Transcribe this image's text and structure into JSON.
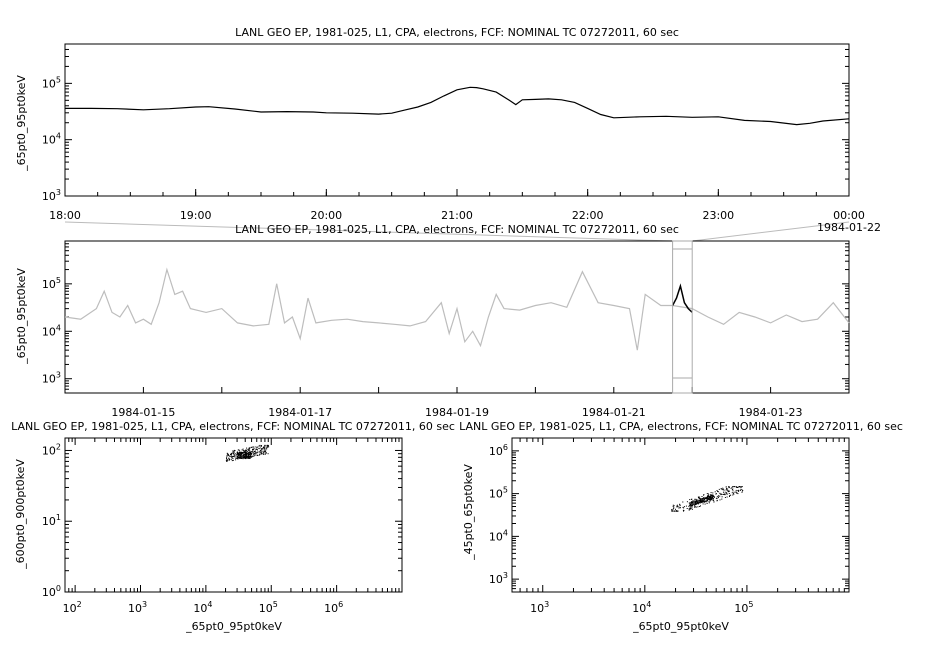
{
  "chart_data": [
    {
      "type": "line",
      "title": "LANL GEO EP, 1981-025, L1, CPA, electrons, FCF: NOMINAL TC 07272011, 60 sec",
      "ylabel": "_65pt0_95pt0keV",
      "yscale": "log",
      "ylim": [
        1000,
        500000
      ],
      "y_ticks": [
        {
          "b": "10",
          "e": "3"
        },
        {
          "b": "10",
          "e": "4"
        },
        {
          "b": "10",
          "e": "5"
        }
      ],
      "x_ticks": [
        "18:00",
        "19:00",
        "20:00",
        "21:00",
        "22:00",
        "23:00",
        "00:00"
      ],
      "x_extra_label": "1984-01-22",
      "xlim": [
        18.0,
        24.0
      ],
      "series": [
        {
          "x": [
            18.0,
            18.2,
            18.4,
            18.6,
            18.8,
            19.0,
            19.1,
            19.3,
            19.5,
            19.7,
            19.9,
            20.0,
            20.2,
            20.4,
            20.5,
            20.6,
            20.7,
            20.8,
            20.9,
            21.0,
            21.1,
            21.15,
            21.2,
            21.3,
            21.4,
            21.45,
            21.5,
            21.6,
            21.7,
            21.8,
            21.9,
            22.0,
            22.1,
            22.2,
            22.3,
            22.4,
            22.6,
            22.8,
            23.0,
            23.2,
            23.4,
            23.6,
            23.7,
            23.8,
            24.0
          ],
          "y": [
            36000,
            36000,
            35500,
            34000,
            35500,
            38000,
            38500,
            35000,
            31000,
            31500,
            31000,
            30000,
            29500,
            28500,
            29500,
            33500,
            38000,
            46000,
            60000,
            77000,
            85000,
            84000,
            80000,
            70000,
            50000,
            42000,
            51000,
            52000,
            53000,
            51000,
            46000,
            36000,
            28000,
            24500,
            25000,
            25500,
            26000,
            25000,
            25500,
            22000,
            21000,
            18500,
            19500,
            21500,
            23500
          ]
        }
      ]
    },
    {
      "type": "line",
      "title": "LANL GEO EP, 1981-025, L1, CPA, electrons, FCF: NOMINAL TC 07272011, 60 sec",
      "ylabel": "_65pt0_95pt0keV",
      "yscale": "log",
      "ylim": [
        500,
        800000
      ],
      "y_ticks": [
        {
          "b": "10",
          "e": "3"
        },
        {
          "b": "10",
          "e": "4"
        },
        {
          "b": "10",
          "e": "5"
        }
      ],
      "x_ticks": [
        "1984-01-15",
        "1984-01-17",
        "1984-01-19",
        "1984-01-21",
        "1984-01-23"
      ],
      "xlim": [
        14.0,
        24.0
      ],
      "highlight": [
        21.75,
        22.0
      ],
      "series": [
        {
          "x": [
            14.0,
            14.2,
            14.4,
            14.5,
            14.6,
            14.7,
            14.8,
            14.9,
            15.0,
            15.1,
            15.2,
            15.3,
            15.4,
            15.5,
            15.6,
            15.8,
            16.0,
            16.2,
            16.4,
            16.6,
            16.7,
            16.8,
            16.9,
            17.0,
            17.1,
            17.2,
            17.4,
            17.6,
            17.8,
            18.0,
            18.2,
            18.4,
            18.6,
            18.8,
            18.9,
            19.0,
            19.1,
            19.2,
            19.3,
            19.4,
            19.5,
            19.6,
            19.8,
            20.0,
            20.2,
            20.4,
            20.6,
            20.8,
            21.0,
            21.2,
            21.3,
            21.4,
            21.6,
            21.75,
            22.0,
            22.2,
            22.4,
            22.6,
            22.8,
            23.0,
            23.2,
            23.4,
            23.6,
            23.8,
            24.0
          ],
          "y": [
            20000,
            18000,
            30000,
            70000,
            25000,
            20000,
            35000,
            15000,
            18000,
            14000,
            40000,
            200000,
            60000,
            70000,
            30000,
            25000,
            30000,
            15000,
            13000,
            14000,
            100000,
            15000,
            20000,
            7000,
            50000,
            15000,
            17000,
            18000,
            16000,
            15000,
            14000,
            13000,
            16000,
            40000,
            9000,
            30000,
            6000,
            10000,
            5000,
            20000,
            60000,
            30000,
            28000,
            35000,
            40000,
            32000,
            180000,
            40000,
            35000,
            30000,
            4000,
            60000,
            35000,
            35000,
            30000,
            20000,
            14000,
            25000,
            20000,
            15000,
            22000,
            16000,
            18000,
            40000,
            15000
          ]
        },
        {
          "x": [
            21.75,
            21.8,
            21.85,
            21.9,
            21.95,
            22.0
          ],
          "y": [
            35000,
            50000,
            90000,
            40000,
            30000,
            25000
          ]
        }
      ]
    },
    {
      "type": "scatter",
      "title": "LANL GEO EP, 1981-025, L1, CPA, electrons, FCF: NOMINAL TC 07272011, 60 sec",
      "xlabel": "_65pt0_95pt0keV",
      "ylabel": "_600pt0_900pt0keV",
      "xscale": "log",
      "yscale": "log",
      "xlim": [
        70,
        10000000
      ],
      "ylim": [
        1,
        150
      ],
      "x_ticks": [
        {
          "b": "10",
          "e": "2"
        },
        {
          "b": "10",
          "e": "3"
        },
        {
          "b": "10",
          "e": "4"
        },
        {
          "b": "10",
          "e": "5"
        },
        {
          "b": "10",
          "e": "6"
        }
      ],
      "y_ticks": [
        {
          "b": "10",
          "e": "0"
        },
        {
          "b": "10",
          "e": "1"
        },
        {
          "b": "10",
          "e": "2"
        }
      ],
      "cluster": {
        "x_range": [
          20000,
          90000
        ],
        "y_range": [
          70,
          120
        ]
      }
    },
    {
      "type": "scatter",
      "title": "LANL GEO EP, 1981-025, L1, CPA, electrons, FCF: NOMINAL TC 07272011, 60 sec",
      "xlabel": "_65pt0_95pt0keV",
      "ylabel": "_45pt0_65pt0keV",
      "xscale": "log",
      "yscale": "log",
      "xlim": [
        500,
        1000000
      ],
      "ylim": [
        500,
        2000000
      ],
      "x_ticks": [
        {
          "b": "10",
          "e": "3"
        },
        {
          "b": "10",
          "e": "4"
        },
        {
          "b": "10",
          "e": "5"
        }
      ],
      "y_ticks": [
        {
          "b": "10",
          "e": "3"
        },
        {
          "b": "10",
          "e": "4"
        },
        {
          "b": "10",
          "e": "5"
        },
        {
          "b": "10",
          "e": "6"
        }
      ],
      "cluster": {
        "x_range": [
          18000,
          90000
        ],
        "y_range": [
          40000,
          150000
        ]
      }
    }
  ]
}
